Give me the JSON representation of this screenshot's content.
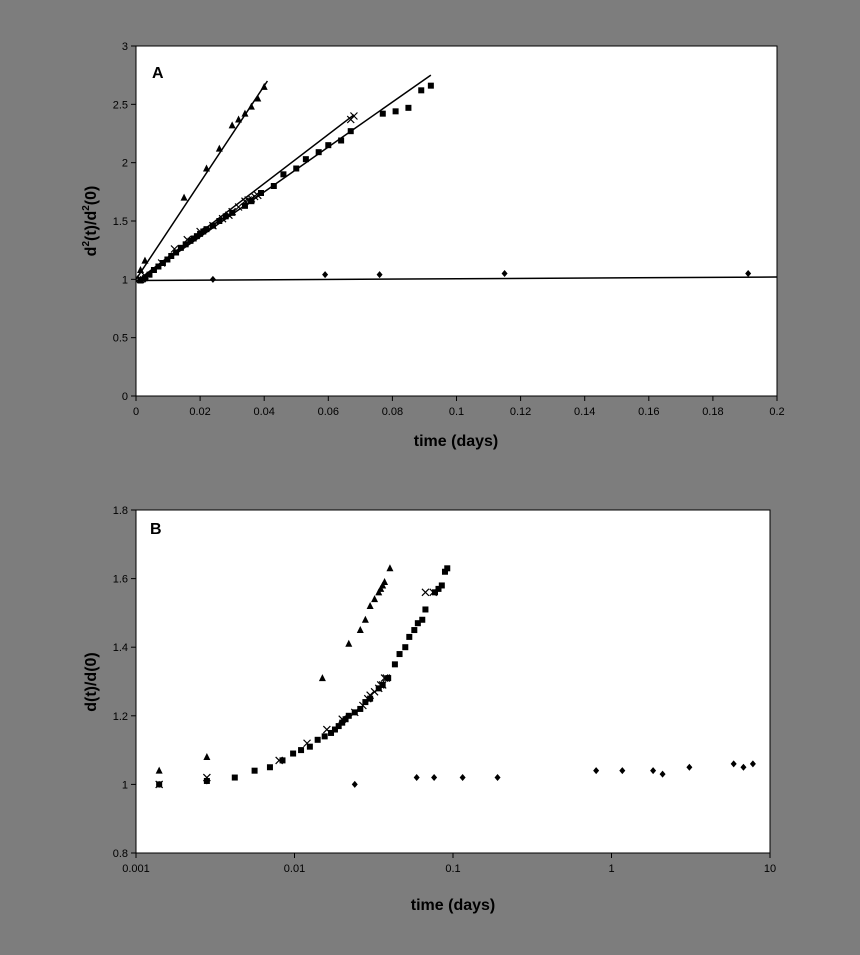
{
  "background_color": "#7d7d7d",
  "plot_color": "#ffffff",
  "chart_data": [
    {
      "type": "scatter",
      "panel_label": "A",
      "xlabel": "time (days)",
      "ylabel": "d2(t)/d2(0)",
      "xscale": "linear",
      "xlim": [
        0,
        0.2
      ],
      "ylim": [
        0,
        3
      ],
      "xticks": [
        0,
        0.02,
        0.04,
        0.06,
        0.08,
        0.1,
        0.12,
        0.14,
        0.16,
        0.18,
        0.2
      ],
      "xtick_labels": [
        "0",
        "0.02",
        "0.04",
        "0.06",
        "0.08",
        "0.1",
        "0.12",
        "0.14",
        "0.16",
        "0.18",
        "0.2"
      ],
      "yticks": [
        0,
        0.5,
        1,
        1.5,
        2,
        2.5,
        3
      ],
      "ytick_labels": [
        "0",
        "0.5",
        "1",
        "1.5",
        "2",
        "2.5",
        "3"
      ],
      "grid": false,
      "legend": "none",
      "series": [
        {
          "marker": "triangle",
          "x": [
            0.0014,
            0.0028,
            0.015,
            0.022,
            0.026,
            0.03,
            0.032,
            0.034,
            0.036,
            0.038,
            0.04
          ],
          "y": [
            1.08,
            1.16,
            1.7,
            1.95,
            2.12,
            2.32,
            2.37,
            2.42,
            2.48,
            2.55,
            2.65
          ],
          "fit": [
            [
              0,
              1.0
            ],
            [
              0.041,
              2.7
            ]
          ]
        },
        {
          "marker": "square",
          "x": [
            0.0014,
            0.0028,
            0.0042,
            0.0056,
            0.007,
            0.0084,
            0.0098,
            0.011,
            0.0125,
            0.014,
            0.0155,
            0.017,
            0.018,
            0.019,
            0.02,
            0.021,
            0.022,
            0.024,
            0.026,
            0.028,
            0.03,
            0.034,
            0.036,
            0.039,
            0.043,
            0.046,
            0.05,
            0.053,
            0.057,
            0.06,
            0.064,
            0.067,
            0.077,
            0.081,
            0.085,
            0.089,
            0.092
          ],
          "y": [
            0.99,
            1.01,
            1.04,
            1.08,
            1.11,
            1.14,
            1.17,
            1.2,
            1.23,
            1.27,
            1.3,
            1.33,
            1.35,
            1.37,
            1.39,
            1.41,
            1.43,
            1.46,
            1.5,
            1.54,
            1.57,
            1.63,
            1.67,
            1.74,
            1.8,
            1.9,
            1.95,
            2.03,
            2.09,
            2.15,
            2.19,
            2.27,
            2.42,
            2.44,
            2.47,
            2.62,
            2.66
          ],
          "fit": [
            [
              0,
              0.98
            ],
            [
              0.092,
              2.75
            ]
          ]
        },
        {
          "marker": "cross",
          "x": [
            0.0014,
            0.0028,
            0.008,
            0.012,
            0.016,
            0.02,
            0.024,
            0.027,
            0.029,
            0.03,
            0.032,
            0.034,
            0.035,
            0.036,
            0.037,
            0.038,
            0.067,
            0.068
          ],
          "y": [
            1.0,
            1.03,
            1.14,
            1.26,
            1.34,
            1.41,
            1.46,
            1.52,
            1.55,
            1.58,
            1.62,
            1.67,
            1.68,
            1.69,
            1.71,
            1.72,
            2.37,
            2.4
          ],
          "fit": [
            [
              0,
              0.98
            ],
            [
              0.068,
              2.41
            ]
          ]
        },
        {
          "marker": "diamond",
          "x": [
            0.0014,
            0.0028,
            0.024,
            0.059,
            0.076,
            0.115,
            0.191
          ],
          "y": [
            1.0,
            1.0,
            1.0,
            1.04,
            1.04,
            1.05,
            1.05
          ],
          "fit": [
            [
              0,
              0.99
            ],
            [
              0.2,
              1.02
            ]
          ]
        }
      ]
    },
    {
      "type": "scatter",
      "panel_label": "B",
      "xlabel": "time (days)",
      "ylabel": "d(t)/d(0)",
      "xscale": "log",
      "xlim": [
        0.001,
        10
      ],
      "ylim": [
        0.8,
        1.8
      ],
      "xticks": [
        0.001,
        0.01,
        0.1,
        1,
        10
      ],
      "xtick_labels": [
        "0.001",
        "0.01",
        "0.1",
        "1",
        "10"
      ],
      "yticks": [
        0.8,
        1,
        1.2,
        1.4,
        1.6,
        1.8
      ],
      "ytick_labels": [
        "0.8",
        "1",
        "1.2",
        "1.4",
        "1.6",
        "1.8"
      ],
      "grid": false,
      "legend": "none",
      "series": [
        {
          "marker": "triangle",
          "x": [
            0.0014,
            0.0028,
            0.015,
            0.022,
            0.026,
            0.028,
            0.03,
            0.032,
            0.034,
            0.035,
            0.036,
            0.037,
            0.04
          ],
          "y": [
            1.04,
            1.08,
            1.31,
            1.41,
            1.45,
            1.48,
            1.52,
            1.54,
            1.56,
            1.57,
            1.58,
            1.59,
            1.63
          ],
          "fit": []
        },
        {
          "marker": "square",
          "x": [
            0.0014,
            0.0028,
            0.0042,
            0.0056,
            0.007,
            0.0084,
            0.0098,
            0.011,
            0.0125,
            0.014,
            0.0155,
            0.017,
            0.018,
            0.019,
            0.02,
            0.021,
            0.022,
            0.024,
            0.026,
            0.028,
            0.03,
            0.034,
            0.036,
            0.039,
            0.043,
            0.046,
            0.05,
            0.053,
            0.057,
            0.06,
            0.064,
            0.067,
            0.077,
            0.081,
            0.085,
            0.089,
            0.092
          ],
          "y": [
            1.0,
            1.01,
            1.02,
            1.04,
            1.05,
            1.07,
            1.09,
            1.1,
            1.11,
            1.13,
            1.14,
            1.15,
            1.16,
            1.17,
            1.18,
            1.19,
            1.2,
            1.21,
            1.22,
            1.24,
            1.25,
            1.28,
            1.29,
            1.31,
            1.35,
            1.38,
            1.4,
            1.43,
            1.45,
            1.47,
            1.48,
            1.51,
            1.56,
            1.57,
            1.58,
            1.62,
            1.63
          ],
          "fit": []
        },
        {
          "marker": "cross",
          "x": [
            0.0014,
            0.0028,
            0.008,
            0.012,
            0.016,
            0.02,
            0.024,
            0.027,
            0.029,
            0.03,
            0.032,
            0.034,
            0.035,
            0.036,
            0.037,
            0.038,
            0.067,
            0.075
          ],
          "y": [
            1.0,
            1.02,
            1.07,
            1.12,
            1.16,
            1.19,
            1.21,
            1.23,
            1.25,
            1.26,
            1.27,
            1.28,
            1.29,
            1.29,
            1.31,
            1.31,
            1.56,
            1.56
          ],
          "fit": []
        },
        {
          "marker": "diamond",
          "x": [
            0.0014,
            0.0028,
            0.024,
            0.059,
            0.076,
            0.115,
            0.191,
            0.8,
            1.17,
            1.83,
            2.1,
            3.1,
            5.9,
            6.8,
            7.8
          ],
          "y": [
            1.0,
            1.01,
            1.0,
            1.02,
            1.02,
            1.02,
            1.02,
            1.04,
            1.04,
            1.04,
            1.03,
            1.05,
            1.06,
            1.05,
            1.06
          ],
          "fit": []
        }
      ]
    }
  ]
}
